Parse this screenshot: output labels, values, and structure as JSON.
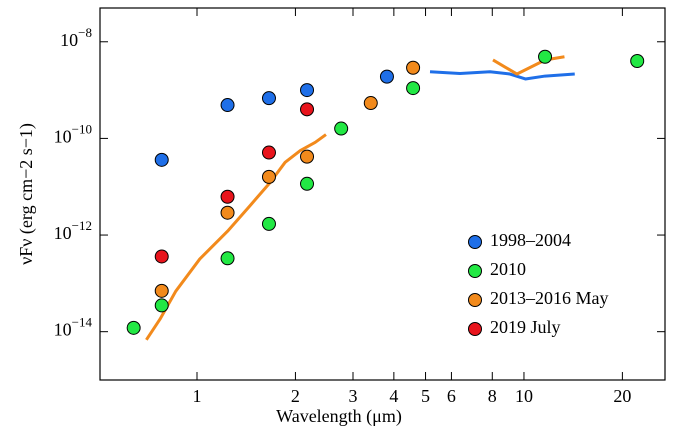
{
  "chart_data": {
    "type": "scatter",
    "x_label": "Wavelength (μm)",
    "y_label": "νFν (erg cm−2 s−1)",
    "log_x": true,
    "log_y": true,
    "xlim": [
      0.505,
      27
    ],
    "ylim": [
      1e-15,
      5e-08
    ],
    "xticks": [
      1,
      2,
      3,
      4,
      5,
      6,
      8,
      10,
      20
    ],
    "yticks": [
      {
        "value": 1e-08,
        "label": "10−8"
      },
      {
        "value": 1e-10,
        "label": "10−10"
      },
      {
        "value": 1e-12,
        "label": "10−12"
      },
      {
        "value": 1e-14,
        "label": "10−14"
      }
    ],
    "legend": "lower right",
    "series": [
      {
        "name": "1998–2004",
        "color": "#1f6fe8",
        "x": [
          0.78,
          1.24,
          1.66,
          2.17,
          3.81
        ],
        "values": [
          3.6e-11,
          4.9e-10,
          6.8e-10,
          1e-09,
          1.9e-09
        ],
        "lines": [
          {
            "x": [
              5.16,
              6.37,
              7.87,
              9.06,
              10.1,
              11.6,
              14.3
            ],
            "values": [
              2.4e-09,
              2.2e-09,
              2.4e-09,
              2.15e-09,
              1.7e-09,
              1.95e-09,
              2.15e-09
            ]
          }
        ]
      },
      {
        "name": "2010",
        "color": "#22e844",
        "x": [
          0.64,
          0.78,
          1.24,
          1.66,
          2.17,
          2.76,
          4.58,
          11.6,
          22.2
        ],
        "values": [
          1.2e-14,
          3.5e-14,
          3.3e-13,
          1.7e-12,
          1.15e-11,
          1.6e-10,
          1.1e-09,
          4.9e-09,
          4e-09
        ],
        "lines": []
      },
      {
        "name": "2013–2016 May",
        "color": "#f28a1c",
        "x": [
          0.78,
          1.24,
          1.66,
          2.17,
          3.4,
          4.58
        ],
        "values": [
          7e-14,
          2.9e-12,
          1.6e-11,
          4.2e-11,
          5.4e-10,
          2.9e-09
        ],
        "lines": [
          {
            "x": [
              0.7,
              0.77,
              0.86,
              1.02,
              1.24,
              1.45,
              1.67,
              1.86,
              2.07,
              2.3,
              2.48
            ],
            "values": [
              6.8e-15,
              1.8e-14,
              6.8e-14,
              3.2e-13,
              1.2e-12,
              4e-12,
              1.2e-11,
              3.2e-11,
              5.6e-11,
              8.3e-11,
              1.2e-10
            ]
          },
          {
            "x": [
              8.04,
              8.75,
              9.52,
              10.4,
              11.6,
              13.3
            ],
            "values": [
              4.2e-09,
              3e-09,
              2.15e-09,
              2.9e-09,
              4.2e-09,
              4.9e-09
            ]
          }
        ]
      },
      {
        "name": "2019 July",
        "color": "#e8141c",
        "x": [
          0.78,
          1.24,
          1.66,
          2.17
        ],
        "values": [
          3.6e-13,
          6.2e-12,
          5.1e-11,
          4e-10
        ],
        "lines": []
      }
    ]
  }
}
